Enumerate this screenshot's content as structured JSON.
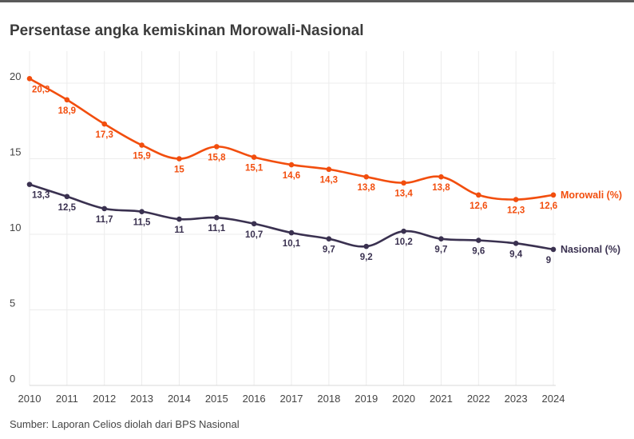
{
  "title": "Persentase angka kemiskinan Morowali-Nasional",
  "source": "Sumber: Laporan Celios diolah dari BPS Nasional",
  "chart_data": {
    "type": "line",
    "title": "Persentase angka kemiskinan Morowali-Nasional",
    "xlabel": "",
    "ylabel": "",
    "x": [
      2010,
      2011,
      2012,
      2013,
      2014,
      2015,
      2016,
      2017,
      2018,
      2019,
      2020,
      2021,
      2022,
      2023,
      2024
    ],
    "ylim": [
      0,
      20
    ],
    "yticks": [
      0,
      5,
      10,
      15,
      20
    ],
    "grid": true,
    "legend": "direct labels at line ends (right)",
    "series": [
      {
        "name": "Morowali (%)",
        "color": "#f24e0e",
        "values": [
          20.3,
          18.9,
          17.3,
          15.9,
          15,
          15.8,
          15.1,
          14.6,
          14.3,
          13.8,
          13.4,
          13.8,
          12.6,
          12.3,
          12.6
        ],
        "labels": [
          "20,3",
          "18,9",
          "17,3",
          "15,9",
          "15",
          "15,8",
          "15,1",
          "14,6",
          "14,3",
          "13,8",
          "13,4",
          "13,8",
          "12,6",
          "12,3",
          "12,6"
        ]
      },
      {
        "name": "Nasional (%)",
        "color": "#3a3150",
        "values": [
          13.3,
          12.5,
          11.7,
          11.5,
          11,
          11.1,
          10.7,
          10.1,
          9.7,
          9.2,
          10.2,
          9.7,
          9.6,
          9.4,
          9
        ],
        "labels": [
          "13,3",
          "12,5",
          "11,7",
          "11,5",
          "11",
          "11,1",
          "10,7",
          "10,1",
          "9,7",
          "9,2",
          "10,2",
          "9,7",
          "9,6",
          "9,4",
          "9"
        ]
      }
    ]
  }
}
